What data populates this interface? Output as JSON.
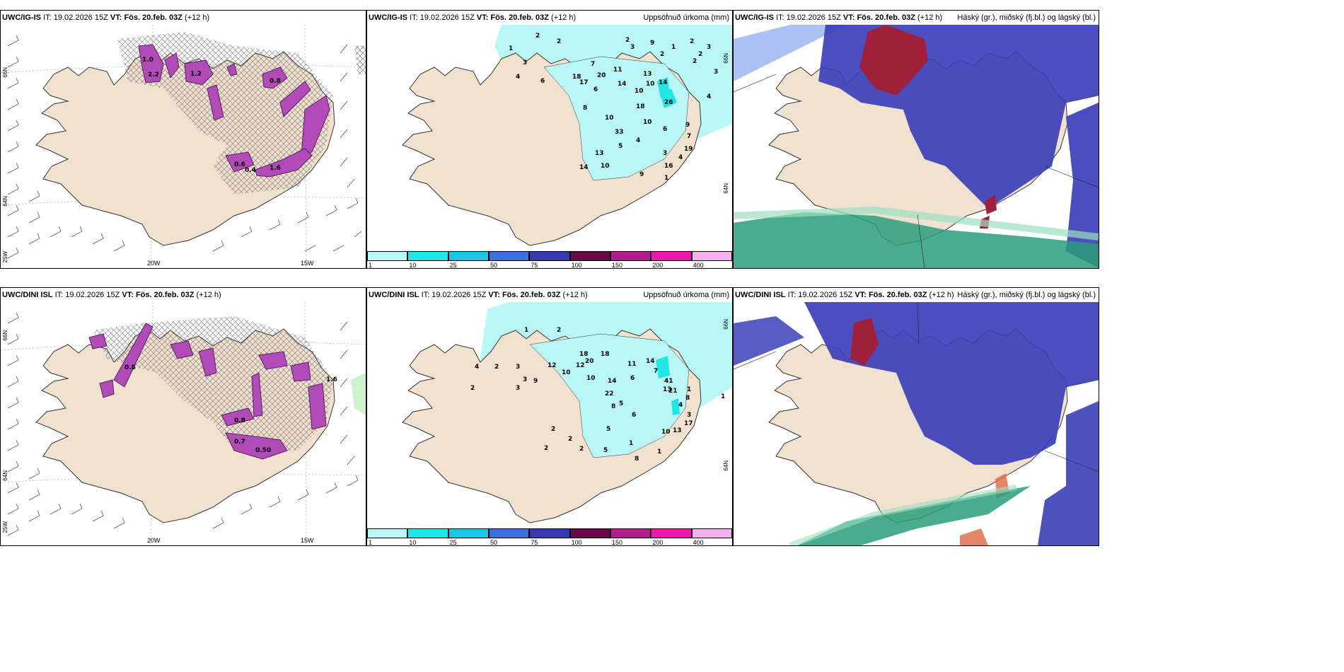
{
  "colors": {
    "land": "#f1e1cf",
    "sea": "#ffffff",
    "precip_light": "#b9f6f6",
    "snow_band": "#b04bb8",
    "high_cloud": "#a0203c",
    "mid_cloud": "#3b3fb8",
    "low_cloud": "#2a9d7a"
  },
  "panels": [
    {
      "model": "UWC/IG-IS",
      "it_label": "IT:",
      "it_time": "19.02.2026 15Z",
      "vt_label": "VT:",
      "vt_time": "Fös. 20.feb. 03Z",
      "lead": "(+12 h)",
      "title_right": "",
      "lon_labels": [
        "20W",
        "15W"
      ],
      "lat_labels": [
        "66N",
        "64N",
        "25W"
      ]
    },
    {
      "model": "UWC/IG-IS",
      "it_label": "IT:",
      "it_time": "19.02.2026 15Z",
      "vt_label": "VT:",
      "vt_time": "Fös. 20.feb. 03Z",
      "lead": "(+12 h)",
      "title_right": "Uppsöfnuð úrkoma (mm)",
      "lat_labels": [
        "66N",
        "64N"
      ],
      "precip_values": [
        "2",
        "2",
        "1",
        "3",
        "4",
        "6",
        "18",
        "17",
        "20",
        "7",
        "11",
        "6",
        "14",
        "10",
        "10",
        "13",
        "14",
        "26",
        "18",
        "8",
        "10",
        "33",
        "10",
        "6",
        "9",
        "5",
        "4",
        "7",
        "19",
        "4",
        "3",
        "16",
        "13",
        "14",
        "10",
        "9",
        "1",
        "2",
        "4",
        "9",
        "3",
        "2",
        "1",
        "2",
        "3",
        "2",
        "2",
        "3"
      ]
    },
    {
      "model": "UWC/IG-IS",
      "it_label": "IT:",
      "it_time": "19.02.2026 15Z",
      "vt_label": "VT:",
      "vt_time": "Fös. 20.feb. 03Z",
      "lead": "(+12 h)",
      "title_right": "Háský (gr.), miðský (fj.bl.) og lágský (bl.)"
    },
    {
      "model": "UWC/DINI ISL",
      "it_label": "IT:",
      "it_time": "19.02.2026 15Z",
      "vt_label": "VT:",
      "vt_time": "Fös. 20.feb. 03Z",
      "lead": "(+12 h)",
      "title_right": "",
      "lon_labels": [
        "20W",
        "15W"
      ],
      "lat_labels": [
        "66N",
        "64N",
        "25W"
      ],
      "barb_value": "1.6"
    },
    {
      "model": "UWC/DINI ISL",
      "it_label": "IT:",
      "it_time": "19.02.2026 15Z",
      "vt_label": "VT:",
      "vt_time": "Fös. 20.feb. 03Z",
      "lead": "(+12 h)",
      "title_right": "Uppsöfnuð úrkoma (mm)",
      "lat_labels": [
        "66N",
        "64N"
      ],
      "precip_values": [
        "1",
        "2",
        "2",
        "4",
        "2",
        "3",
        "3",
        "3",
        "9",
        "12",
        "10",
        "12",
        "18",
        "20",
        "10",
        "18",
        "13",
        "14",
        "22",
        "8",
        "41",
        "11",
        "6",
        "14",
        "7",
        "21",
        "5",
        "4",
        "1",
        "8",
        "3",
        "17",
        "13",
        "10",
        "5",
        "2",
        "2",
        "5",
        "6",
        "8",
        "1",
        "1",
        "2",
        "2",
        "1"
      ]
    },
    {
      "model": "UWC/DINI ISL",
      "it_label": "IT:",
      "it_time": "19.02.2026 15Z",
      "vt_label": "VT:",
      "vt_time": "Fös. 20.feb. 03Z",
      "lead": "(+12 h)",
      "title_right": "Háský (gr.), miðský (fj.bl.) og lágský (bl.)"
    }
  ],
  "colorbar": {
    "labels": [
      "1",
      "10",
      "25",
      "50",
      "75",
      "100",
      "150",
      "200",
      "400"
    ],
    "colors": [
      "#b9f6f6",
      "#22e6e6",
      "#1cc4e8",
      "#3a6fe0",
      "#3737b0",
      "#6a0848",
      "#b01e8c",
      "#ee18b0",
      "#f4b0ee"
    ]
  }
}
